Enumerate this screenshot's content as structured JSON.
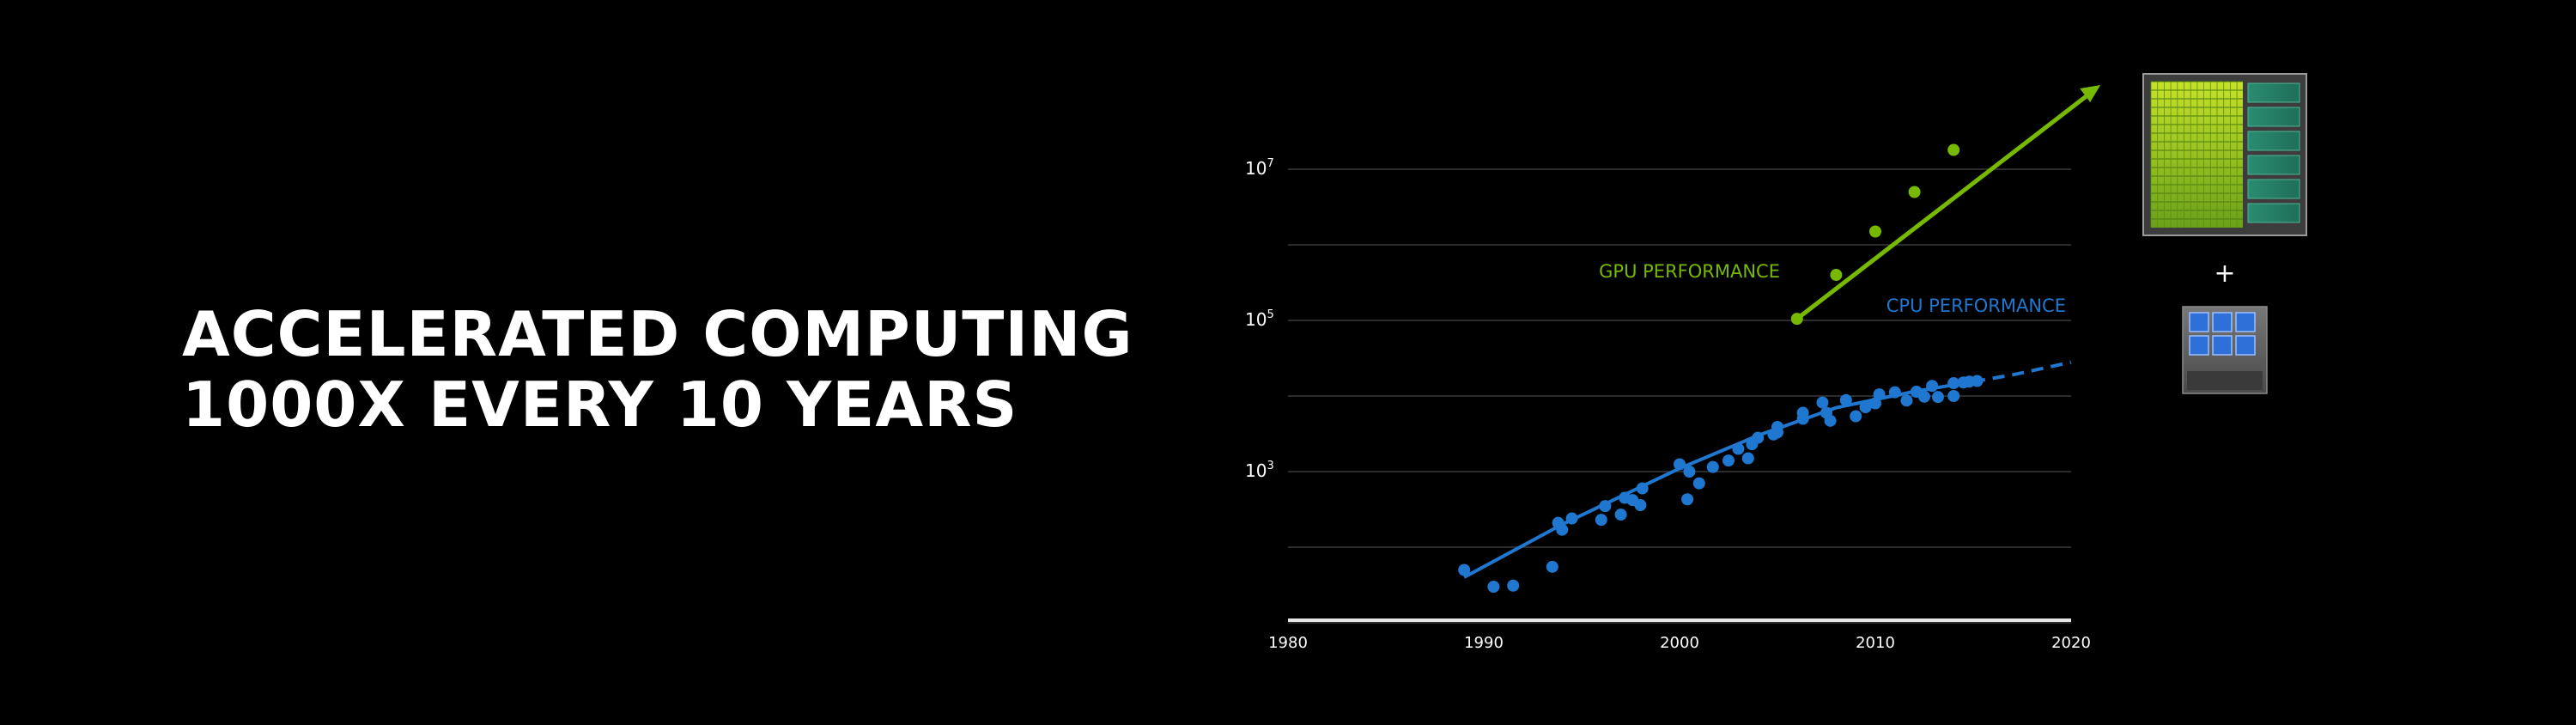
{
  "headline": {
    "line1": "ACCELERATED COMPUTING",
    "line2": "1000X EVERY 10 YEARS"
  },
  "chart_data": {
    "type": "scatter",
    "title": "",
    "xlabel": "",
    "ylabel": "",
    "xlim": [
      1980,
      2020
    ],
    "ylim_log10": [
      1,
      7
    ],
    "y_scale": "log",
    "grid": true,
    "x_ticks": [
      "1980",
      "1990",
      "2000",
      "2010",
      "2020"
    ],
    "y_ticks": [
      {
        "log10": 3,
        "base": "10",
        "exp": "3"
      },
      {
        "log10": 5,
        "base": "10",
        "exp": "5"
      },
      {
        "log10": 7,
        "base": "10",
        "exp": "7"
      }
    ],
    "series": [
      {
        "name": "GPU PERFORMANCE",
        "color": "#76b900",
        "kind": "line-with-markers-and-arrow",
        "points": [
          [
            2006,
            105000
          ],
          [
            2008,
            400000
          ],
          [
            2010,
            1500000
          ],
          [
            2012,
            5000000
          ],
          [
            2014,
            18000000
          ]
        ],
        "arrow_to": [
          2021.5,
          130000000
        ]
      },
      {
        "name": "CPU PERFORMANCE",
        "color": "#1f77d0",
        "kind": "scatter-with-trend",
        "points": [
          [
            1989,
            50
          ],
          [
            1990.5,
            30
          ],
          [
            1991.5,
            31
          ],
          [
            1993.5,
            55
          ],
          [
            1993.8,
            210
          ],
          [
            1994,
            170
          ],
          [
            1994.5,
            240
          ],
          [
            1996,
            230
          ],
          [
            1996.2,
            350
          ],
          [
            1997,
            270
          ],
          [
            1997.2,
            450
          ],
          [
            1997.6,
            420
          ],
          [
            1998,
            360
          ],
          [
            1998.1,
            600
          ],
          [
            2000,
            1250
          ],
          [
            2000.5,
            1000
          ],
          [
            2000.4,
            430
          ],
          [
            2001,
            700
          ],
          [
            2001.7,
            1150
          ],
          [
            2002.5,
            1400
          ],
          [
            2003,
            2000
          ],
          [
            2003.5,
            1500
          ],
          [
            2003.7,
            2300
          ],
          [
            2004,
            2800
          ],
          [
            2004.8,
            3100
          ],
          [
            2005,
            3900
          ],
          [
            2005,
            3300
          ],
          [
            2006.3,
            6000
          ],
          [
            2006.3,
            5000
          ],
          [
            2007.3,
            8200
          ],
          [
            2007.5,
            6000
          ],
          [
            2007.7,
            4700
          ],
          [
            2008.5,
            8800
          ],
          [
            2009,
            5400
          ],
          [
            2009.5,
            7100
          ],
          [
            2010,
            8000
          ],
          [
            2010.2,
            10500
          ],
          [
            2011,
            11200
          ],
          [
            2011.6,
            8700
          ],
          [
            2012.1,
            11400
          ],
          [
            2012.5,
            9800
          ],
          [
            2012.9,
            13600
          ],
          [
            2013.2,
            9700
          ],
          [
            2014,
            10000
          ],
          [
            2014,
            14800
          ],
          [
            2014.5,
            15100
          ],
          [
            2014.8,
            15500
          ],
          [
            2015.2,
            15800
          ]
        ],
        "trend": [
          [
            1989,
            40
          ],
          [
            1994,
            200
          ],
          [
            2000,
            1100
          ],
          [
            2004,
            3000
          ],
          [
            2008,
            7000
          ],
          [
            2012,
            11500
          ],
          [
            2015,
            15500
          ]
        ],
        "trend_dashed": [
          [
            2015,
            15500
          ],
          [
            2017,
            19000
          ],
          [
            2020,
            28000
          ]
        ]
      }
    ]
  },
  "icons": {
    "gpu": "gpu-chip-icon",
    "plus": "+",
    "cpu": "cpu-chip-icon"
  }
}
